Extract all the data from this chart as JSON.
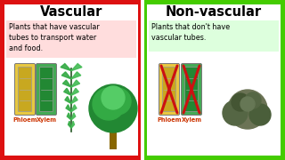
{
  "left_title": "Vascular",
  "right_title": "Non-vascular",
  "left_border_color": "#dd1111",
  "right_border_color": "#44cc00",
  "left_bg": "#ffffff",
  "right_bg": "#ffffff",
  "left_desc_bg": "#ffdddd",
  "right_desc_bg": "#ddffdd",
  "left_desc": "Plants that have vascular\ntubes to transport water\nand food.",
  "right_desc": "Plants that don't have\nvascular tubes.",
  "phloem_label": "Phloem",
  "xylem_label": "Xylem",
  "label_color": "#cc3300",
  "title_fontsize": 10.5,
  "desc_fontsize": 5.8,
  "label_fontsize": 4.8,
  "phloem_color": "#e8c840",
  "phloem_inner": "#c8a820",
  "xylem_color": "#44aa55",
  "xylem_inner": "#228833",
  "trunk_color": "#886600",
  "tree_dark": "#228833",
  "tree_mid": "#33aa44",
  "tree_light": "#55cc66",
  "moss_dark": "#445533",
  "moss_mid": "#556644",
  "moss_light": "#667755",
  "cross_color": "#cc1111",
  "divider_color": "#ffffff"
}
